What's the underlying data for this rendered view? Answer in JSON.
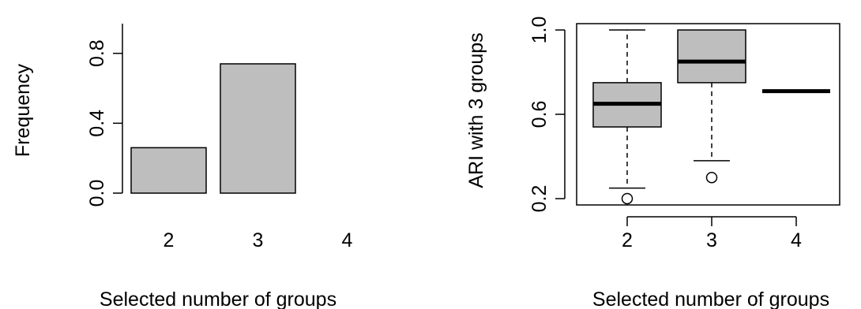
{
  "chart_data": [
    {
      "type": "bar",
      "categories": [
        "2",
        "3",
        "4"
      ],
      "values": [
        0.26,
        0.74,
        0.0
      ],
      "xlabel": "Selected number of groups",
      "ylabel": "Frequency",
      "ylim": [
        0,
        0.97
      ],
      "yticks": [
        0.0,
        0.4,
        0.8
      ],
      "ytick_labels": [
        "0.0",
        "0.4",
        "0.8"
      ],
      "bar_color": "#bebebe",
      "grid": false
    },
    {
      "type": "box",
      "categories": [
        "2",
        "3",
        "4"
      ],
      "boxes": [
        {
          "category": "2",
          "whisker_low": 0.25,
          "q1": 0.54,
          "median": 0.65,
          "q3": 0.75,
          "whisker_high": 1.0,
          "outliers": [
            0.2
          ]
        },
        {
          "category": "3",
          "whisker_low": 0.38,
          "q1": 0.75,
          "median": 0.85,
          "q3": 1.0,
          "whisker_high": 1.0,
          "outliers": [
            0.3
          ]
        },
        {
          "category": "4",
          "whisker_low": 0.71,
          "q1": 0.71,
          "median": 0.71,
          "q3": 0.71,
          "whisker_high": 0.71,
          "outliers": []
        }
      ],
      "xlabel": "Selected number of groups",
      "ylabel": "ARI with 3 groups",
      "ylim": [
        0.17,
        1.03
      ],
      "yticks": [
        0.2,
        0.6,
        1.0
      ],
      "ytick_labels": [
        "0.2",
        "0.6",
        "1.0"
      ],
      "box_color": "#bebebe",
      "grid": false
    }
  ]
}
